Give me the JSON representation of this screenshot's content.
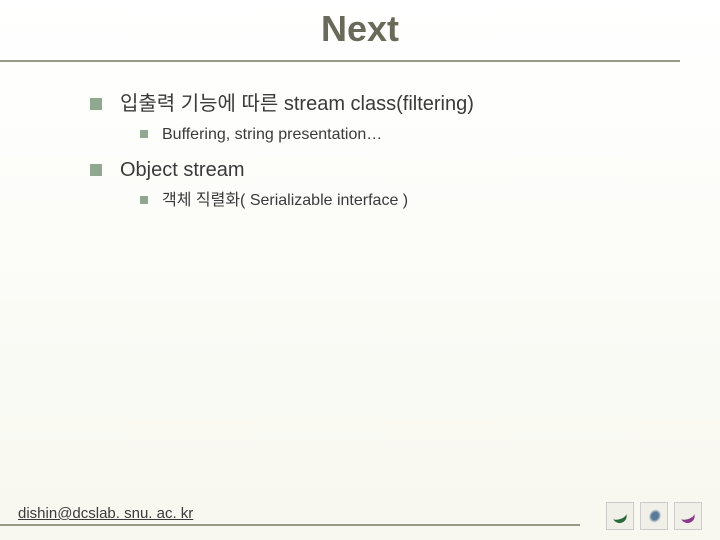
{
  "slide": {
    "title": "Next",
    "title_color": "#6a6a5a",
    "title_fontsize": 36,
    "background_gradient_top": "#ffffff",
    "background_gradient_bottom": "#f8f8f0",
    "line_color": "#999988",
    "bullet_color": "#8fa88f",
    "text_color": "#3a3a3a"
  },
  "content": {
    "items": [
      {
        "level": 1,
        "text": "입출력 기능에 따른 stream class(filtering)"
      },
      {
        "level": 2,
        "text": "Buffering, string presentation…"
      },
      {
        "level": 1,
        "text": "Object stream"
      },
      {
        "level": 2,
        "text": "객체 직렬화( Serializable interface )"
      }
    ]
  },
  "footer": {
    "email": "dishin@dcslab. snu. ac. kr"
  }
}
